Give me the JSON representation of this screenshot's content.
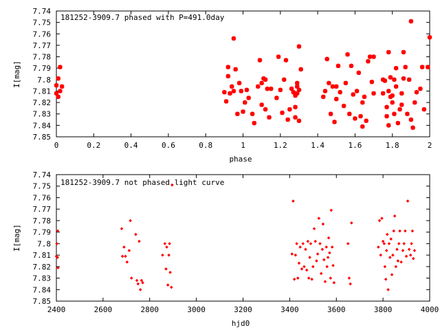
{
  "colors": {
    "points": "#ff0000",
    "axes": "#000000",
    "background": "#ffffff"
  },
  "chart_data": [
    {
      "type": "scatter",
      "title": "181252-3909.7 phased with P=491.0day",
      "xlabel": "phase",
      "ylabel": "I[mag]",
      "xlim": [
        0,
        2
      ],
      "ylim": [
        7.74,
        7.85
      ],
      "y_inverted": true,
      "marker": "star",
      "xticks": [
        "0",
        "0.2",
        "0.4",
        "0.6",
        "0.8",
        "1",
        "1.2",
        "1.4",
        "1.6",
        "1.8",
        "2"
      ],
      "yticks": [
        "7.74",
        "7.75",
        "7.76",
        "7.77",
        "7.78",
        "7.79",
        "7.8",
        "7.81",
        "7.82",
        "7.83",
        "7.84",
        "7.85"
      ],
      "points": [
        [
          0.0,
          7.805
        ],
        [
          0.0,
          7.812
        ],
        [
          0.01,
          7.799
        ],
        [
          0.01,
          7.815
        ],
        [
          0.02,
          7.81
        ],
        [
          0.02,
          7.789
        ],
        [
          0.03,
          7.806
        ],
        [
          0.9,
          7.811
        ],
        [
          0.91,
          7.819
        ],
        [
          0.92,
          7.797
        ],
        [
          0.92,
          7.789
        ],
        [
          0.93,
          7.812
        ],
        [
          0.94,
          7.806
        ],
        [
          0.95,
          7.81
        ],
        [
          0.95,
          7.764
        ],
        [
          0.96,
          7.791
        ],
        [
          0.97,
          7.83
        ],
        [
          0.98,
          7.803
        ],
        [
          0.99,
          7.81
        ],
        [
          1.0,
          7.828
        ],
        [
          1.01,
          7.82
        ],
        [
          1.02,
          7.809
        ],
        [
          1.03,
          7.816
        ],
        [
          1.05,
          7.83
        ],
        [
          1.06,
          7.838
        ],
        [
          1.08,
          7.806
        ],
        [
          1.09,
          7.783
        ],
        [
          1.1,
          7.803
        ],
        [
          1.1,
          7.822
        ],
        [
          1.11,
          7.799
        ],
        [
          1.12,
          7.8
        ],
        [
          1.12,
          7.826
        ],
        [
          1.13,
          7.808
        ],
        [
          1.14,
          7.833
        ],
        [
          1.15,
          7.808
        ],
        [
          1.18,
          7.816
        ],
        [
          1.19,
          7.78
        ],
        [
          1.2,
          7.809
        ],
        [
          1.21,
          7.829
        ],
        [
          1.22,
          7.8
        ],
        [
          1.23,
          7.783
        ],
        [
          1.24,
          7.835
        ],
        [
          1.25,
          7.826
        ],
        [
          1.26,
          7.808
        ],
        [
          1.27,
          7.811
        ],
        [
          1.28,
          7.824
        ],
        [
          1.28,
          7.814
        ],
        [
          1.28,
          7.833
        ],
        [
          1.29,
          7.806
        ],
        [
          1.29,
          7.812
        ],
        [
          1.29,
          7.803
        ],
        [
          1.3,
          7.771
        ],
        [
          1.3,
          7.836
        ],
        [
          1.3,
          7.809
        ],
        [
          1.31,
          7.791
        ],
        [
          1.43,
          7.815
        ],
        [
          1.44,
          7.81
        ],
        [
          1.45,
          7.782
        ],
        [
          1.46,
          7.803
        ],
        [
          1.47,
          7.83
        ],
        [
          1.48,
          7.806
        ],
        [
          1.49,
          7.837
        ],
        [
          1.5,
          7.817
        ],
        [
          1.5,
          7.806
        ],
        [
          1.51,
          7.788
        ],
        [
          1.52,
          7.811
        ],
        [
          1.54,
          7.823
        ],
        [
          1.55,
          7.803
        ],
        [
          1.56,
          7.778
        ],
        [
          1.57,
          7.83
        ],
        [
          1.58,
          7.788
        ],
        [
          1.59,
          7.813
        ],
        [
          1.6,
          7.834
        ],
        [
          1.61,
          7.81
        ],
        [
          1.62,
          7.794
        ],
        [
          1.63,
          7.832
        ],
        [
          1.64,
          7.841
        ],
        [
          1.64,
          7.82
        ],
        [
          1.65,
          7.815
        ],
        [
          1.66,
          7.836
        ],
        [
          1.67,
          7.784
        ],
        [
          1.68,
          7.78
        ],
        [
          1.69,
          7.802
        ],
        [
          1.7,
          7.78
        ],
        [
          1.7,
          7.812
        ],
        [
          1.75,
          7.8
        ],
        [
          1.75,
          7.812
        ],
        [
          1.76,
          7.801
        ],
        [
          1.77,
          7.824
        ],
        [
          1.77,
          7.832
        ],
        [
          1.78,
          7.776
        ],
        [
          1.78,
          7.84
        ],
        [
          1.78,
          7.81
        ],
        [
          1.79,
          7.798
        ],
        [
          1.79,
          7.815
        ],
        [
          1.8,
          7.814
        ],
        [
          1.8,
          7.82
        ],
        [
          1.81,
          7.8
        ],
        [
          1.81,
          7.83
        ],
        [
          1.82,
          7.79
        ],
        [
          1.82,
          7.806
        ],
        [
          1.83,
          7.838
        ],
        [
          1.84,
          7.826
        ],
        [
          1.85,
          7.822
        ],
        [
          1.85,
          7.812
        ],
        [
          1.86,
          7.776
        ],
        [
          1.86,
          7.799
        ],
        [
          1.87,
          7.789
        ],
        [
          1.88,
          7.83
        ],
        [
          1.89,
          7.8
        ],
        [
          1.9,
          7.749
        ],
        [
          1.9,
          7.835
        ],
        [
          1.91,
          7.842
        ],
        [
          1.92,
          7.82
        ],
        [
          1.93,
          7.811
        ],
        [
          1.95,
          7.808
        ],
        [
          1.96,
          7.789
        ],
        [
          1.97,
          7.826
        ],
        [
          1.99,
          7.789
        ],
        [
          2.0,
          7.763
        ]
      ]
    },
    {
      "type": "scatter",
      "title": "181252-3909.7 not phased light curve",
      "xlabel": "hjd0",
      "ylabel": "I[mag]",
      "xlim": [
        2400,
        4000
      ],
      "ylim": [
        7.74,
        7.85
      ],
      "y_inverted": true,
      "marker": "diamond",
      "xticks": [
        "2400",
        "2600",
        "2800",
        "3000",
        "3200",
        "3400",
        "3600",
        "3800",
        "4000"
      ],
      "yticks": [
        "7.74",
        "7.75",
        "7.76",
        "7.77",
        "7.78",
        "7.79",
        "7.8",
        "7.81",
        "7.82",
        "7.83",
        "7.84",
        "7.85"
      ],
      "points": [
        [
          2400,
          7.811
        ],
        [
          2402,
          7.8
        ],
        [
          2405,
          7.812
        ],
        [
          2406,
          7.789
        ],
        [
          2407,
          7.821
        ],
        [
          2680,
          7.787
        ],
        [
          2683,
          7.811
        ],
        [
          2690,
          7.803
        ],
        [
          2696,
          7.811
        ],
        [
          2703,
          7.816
        ],
        [
          2712,
          7.806
        ],
        [
          2717,
          7.78
        ],
        [
          2722,
          7.83
        ],
        [
          2740,
          7.792
        ],
        [
          2745,
          7.832
        ],
        [
          2750,
          7.835
        ],
        [
          2755,
          7.798
        ],
        [
          2760,
          7.84
        ],
        [
          2765,
          7.832
        ],
        [
          2770,
          7.834
        ],
        [
          2855,
          7.81
        ],
        [
          2865,
          7.8
        ],
        [
          2870,
          7.822
        ],
        [
          2873,
          7.803
        ],
        [
          2878,
          7.836
        ],
        [
          2882,
          7.81
        ],
        [
          2885,
          7.8
        ],
        [
          2888,
          7.825
        ],
        [
          2893,
          7.838
        ],
        [
          2896,
          7.749
        ],
        [
          3410,
          7.809
        ],
        [
          3415,
          7.763
        ],
        [
          3420,
          7.831
        ],
        [
          3425,
          7.81
        ],
        [
          3430,
          7.8
        ],
        [
          3435,
          7.83
        ],
        [
          3440,
          7.817
        ],
        [
          3445,
          7.803
        ],
        [
          3452,
          7.822
        ],
        [
          3457,
          7.8
        ],
        [
          3462,
          7.82
        ],
        [
          3468,
          7.805
        ],
        [
          3473,
          7.823
        ],
        [
          3478,
          7.798
        ],
        [
          3482,
          7.83
        ],
        [
          3486,
          7.812
        ],
        [
          3490,
          7.8
        ],
        [
          3495,
          7.831
        ],
        [
          3500,
          7.82
        ],
        [
          3505,
          7.787
        ],
        [
          3510,
          7.798
        ],
        [
          3515,
          7.815
        ],
        [
          3520,
          7.809
        ],
        [
          3525,
          7.778
        ],
        [
          3530,
          7.8
        ],
        [
          3535,
          7.826
        ],
        [
          3540,
          7.805
        ],
        [
          3543,
          7.783
        ],
        [
          3547,
          7.814
        ],
        [
          3552,
          7.833
        ],
        [
          3557,
          7.803
        ],
        [
          3560,
          7.82
        ],
        [
          3564,
          7.812
        ],
        [
          3567,
          7.795
        ],
        [
          3571,
          7.808
        ],
        [
          3575,
          7.83
        ],
        [
          3578,
          7.771
        ],
        [
          3582,
          7.803
        ],
        [
          3586,
          7.819
        ],
        [
          3590,
          7.834
        ],
        [
          3650,
          7.8
        ],
        [
          3655,
          7.83
        ],
        [
          3660,
          7.835
        ],
        [
          3665,
          7.782
        ],
        [
          3780,
          7.803
        ],
        [
          3785,
          7.78
        ],
        [
          3790,
          7.81
        ],
        [
          3795,
          7.778
        ],
        [
          3800,
          7.798
        ],
        [
          3805,
          7.8
        ],
        [
          3808,
          7.82
        ],
        [
          3812,
          7.831
        ],
        [
          3815,
          7.806
        ],
        [
          3818,
          7.792
        ],
        [
          3822,
          7.84
        ],
        [
          3826,
          7.8
        ],
        [
          3830,
          7.812
        ],
        [
          3834,
          7.796
        ],
        [
          3838,
          7.827
        ],
        [
          3842,
          7.81
        ],
        [
          3846,
          7.789
        ],
        [
          3850,
          7.776
        ],
        [
          3855,
          7.82
        ],
        [
          3860,
          7.805
        ],
        [
          3864,
          7.815
        ],
        [
          3868,
          7.8
        ],
        [
          3872,
          7.789
        ],
        [
          3878,
          7.816
        ],
        [
          3885,
          7.806
        ],
        [
          3890,
          7.8
        ],
        [
          3895,
          7.789
        ],
        [
          3900,
          7.811
        ],
        [
          3906,
          7.763
        ],
        [
          3912,
          7.805
        ],
        [
          3918,
          7.81
        ],
        [
          3922,
          7.8
        ],
        [
          3926,
          7.789
        ],
        [
          3930,
          7.813
        ],
        [
          3935,
          7.806
        ]
      ]
    }
  ]
}
